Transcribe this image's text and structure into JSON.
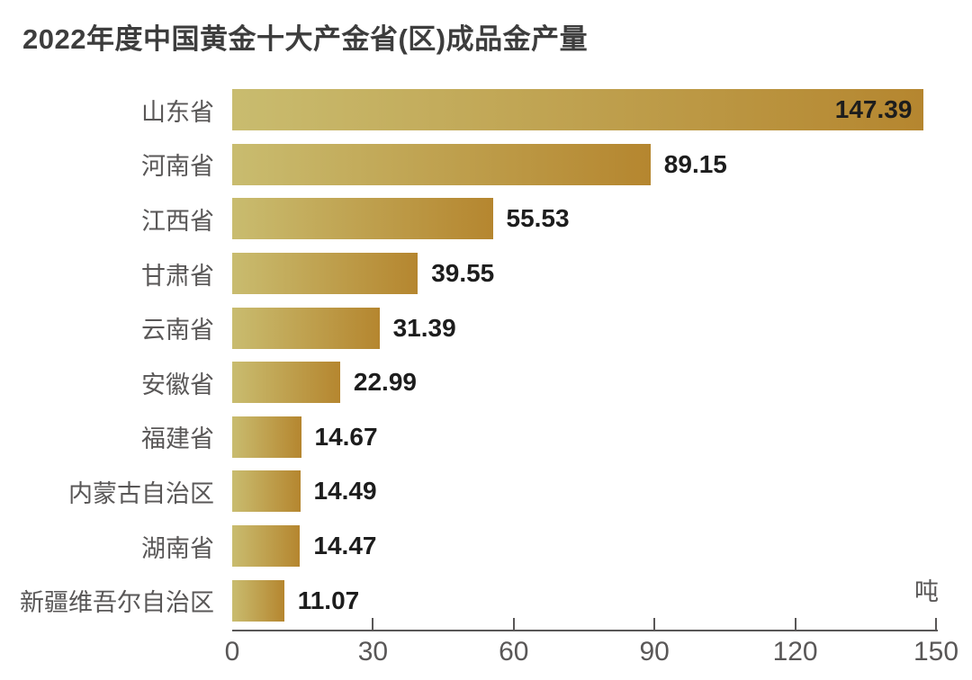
{
  "title": "2022年度中国黄金十大产金省(区)成品金产量",
  "unit_label": "吨",
  "colors": {
    "bar_gradient_start": "#c9bc6f",
    "bar_gradient_end": "#b5862f",
    "title_text": "#3d3d3d",
    "category_text": "#595757",
    "value_text": "#1d1d1d",
    "axis": "#595757"
  },
  "chart_data": {
    "type": "bar",
    "orientation": "horizontal",
    "title": "2022年度中国黄金十大产金省(区)成品金产量",
    "categories": [
      "山东省",
      "河南省",
      "江西省",
      "甘肃省",
      "云南省",
      "安徽省",
      "福建省",
      "内蒙古自治区",
      "湖南省",
      "新疆维吾尔自治区"
    ],
    "values": [
      147.39,
      89.15,
      55.53,
      39.55,
      31.39,
      22.99,
      14.67,
      14.49,
      14.47,
      11.07
    ],
    "value_labels": [
      "147.39",
      "89.15",
      "55.53",
      "39.55",
      "31.39",
      "22.99",
      "14.67",
      "14.49",
      "14.47",
      "11.07"
    ],
    "xlabel": "吨",
    "xlim": [
      0,
      150
    ],
    "xticks": [
      0,
      30,
      60,
      90,
      120,
      150
    ],
    "grid": false,
    "legend": false,
    "value_label_placement": "inside bar for longest bar, otherwise right of bar"
  }
}
